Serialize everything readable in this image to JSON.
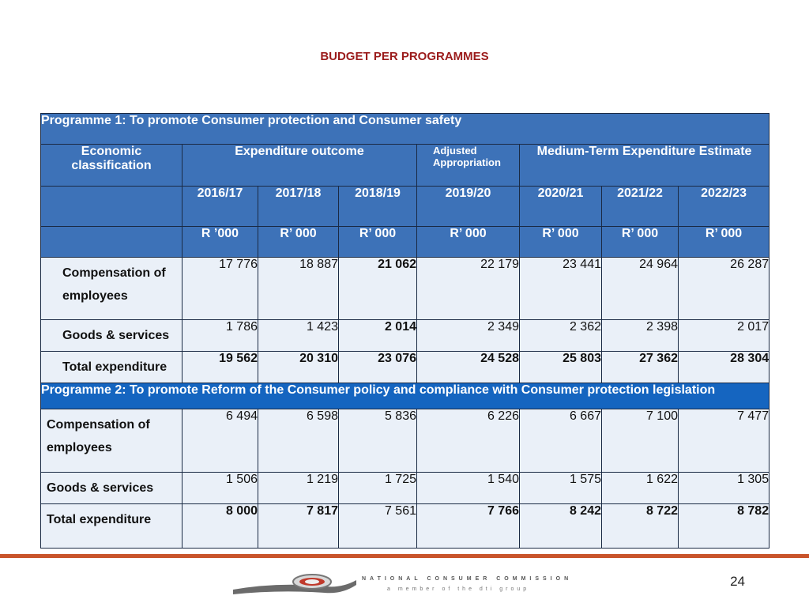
{
  "title": "BUDGET PER PROGRAMMES",
  "programme1": {
    "heading": "Programme 1: To promote Consumer protection and Consumer safety",
    "econ_label": "Economic classification",
    "expenditure_outcome": "Expenditure outcome",
    "adjusted": "Adjusted Appropriation",
    "mtee": "Medium-Term Expenditure Estimate",
    "years": [
      "2016/17",
      "2017/18",
      "2018/19",
      "2019/20",
      "2020/21",
      "2021/22",
      "2022/23"
    ],
    "units": [
      "R ’000",
      "R’ 000",
      "R’ 000",
      "R’ 000",
      "R’ 000",
      "R’ 000",
      "R’ 000"
    ],
    "rows": [
      {
        "label": "Compensation of employees",
        "values": [
          "17 776",
          "18 887",
          "21 062",
          "22 179",
          "23 441",
          "24 964",
          "26 287"
        ]
      },
      {
        "label": "Goods & services",
        "values": [
          "1 786",
          "1 423",
          "2 014",
          "2 349",
          "2 362",
          "2 398",
          "2 017"
        ]
      },
      {
        "label": "Total expenditure",
        "values": [
          "19 562",
          "20 310",
          "23 076",
          "24 528",
          "25 803",
          "27 362",
          "28 304"
        ]
      }
    ]
  },
  "programme2": {
    "heading": "Programme 2: To promote Reform of the Consumer policy and compliance with Consumer protection legislation",
    "rows": [
      {
        "label": "Compensation of employees",
        "values": [
          "6 494",
          "6 598",
          "5 836",
          "6 226",
          "6 667",
          "7 100",
          "7 477"
        ]
      },
      {
        "label": "Goods & services",
        "values": [
          "1 506",
          "1 219",
          "1 725",
          "1 540",
          "1 575",
          "1 622",
          "1 305"
        ]
      },
      {
        "label": "Total expenditure",
        "values": [
          "8 000",
          "7 817",
          "7 561",
          "7 766",
          "8 242",
          "8 722",
          "8 782"
        ]
      }
    ]
  },
  "footer": {
    "brand_line1": "NATIONAL CONSUMER COMMISSION",
    "brand_line2": "a member of the dti group",
    "page_number": "24"
  }
}
